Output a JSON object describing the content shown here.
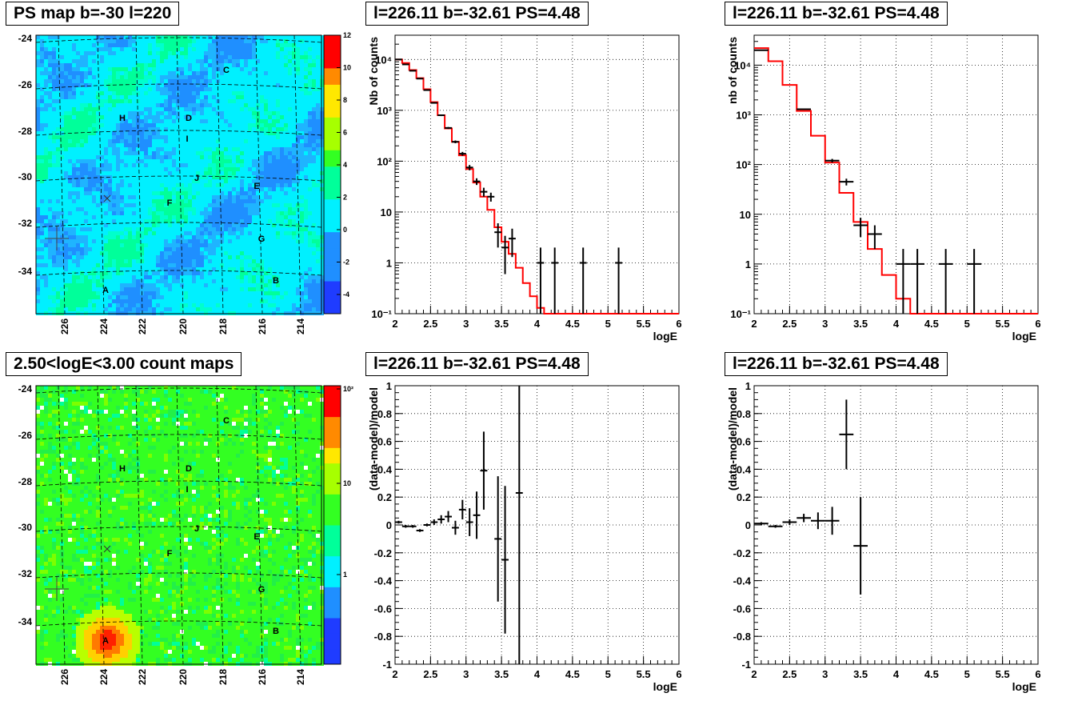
{
  "panels": {
    "ps_map": {
      "title": "PS map b=-30 l=220",
      "y_ticks": [
        "-24",
        "-26",
        "-28",
        "-30",
        "-32",
        "-34"
      ],
      "x_ticks": [
        "226",
        "224",
        "222",
        "220",
        "218",
        "216",
        "214"
      ],
      "colorbar_ticks": [
        "12",
        "10",
        "8",
        "6",
        "4",
        "2",
        "0",
        "-2",
        "-4"
      ],
      "labels": [
        "A",
        "B",
        "C",
        "D",
        "E",
        "F",
        "G",
        "H",
        "I",
        "J"
      ]
    },
    "count_map": {
      "title": "2.50<logE<3.00 count maps",
      "y_ticks": [
        "-24",
        "-26",
        "-28",
        "-30",
        "-32",
        "-34"
      ],
      "x_ticks": [
        "226",
        "224",
        "222",
        "220",
        "218",
        "216",
        "214"
      ],
      "colorbar_ticks": [
        "10²",
        "10",
        "1"
      ],
      "labels": [
        "A",
        "B",
        "C",
        "D",
        "E",
        "F",
        "G",
        "H",
        "I",
        "J"
      ]
    },
    "spectrum_left": {
      "title": "l=226.11 b=-32.61 PS=4.48"
    },
    "spectrum_right": {
      "title": "l=226.11 b=-32.61 PS=4.48"
    },
    "residual_left": {
      "title": "l=226.11 b=-32.61 PS=4.48"
    },
    "residual_right": {
      "title": "l=226.11 b=-32.61 PS=4.48"
    }
  },
  "chart_data": [
    {
      "id": "spectrum_left",
      "type": "line",
      "title": "l=226.11 b=-32.61 PS=4.48",
      "xlabel": "logE",
      "ylabel": "Nb of counts",
      "xlim": [
        2,
        6
      ],
      "ylim": [
        0.1,
        30000
      ],
      "log_y": true,
      "grid": true,
      "x_ticks": [
        "2",
        "2.5",
        "3",
        "3.5",
        "4",
        "4.5",
        "5",
        "5.5",
        "6"
      ],
      "y_ticks": [
        "10⁻¹",
        "1",
        "10",
        "10²",
        "10³",
        "10⁴"
      ],
      "data": [
        {
          "x": 2.05,
          "y": 10000,
          "lo": 9900,
          "hi": 10100
        },
        {
          "x": 2.15,
          "y": 8000,
          "lo": 7900,
          "hi": 8100
        },
        {
          "x": 2.25,
          "y": 6000,
          "lo": 5900,
          "hi": 6100
        },
        {
          "x": 2.35,
          "y": 4200,
          "lo": 4100,
          "hi": 4300
        },
        {
          "x": 2.45,
          "y": 2500,
          "lo": 2450,
          "hi": 2550
        },
        {
          "x": 2.55,
          "y": 1400,
          "lo": 1360,
          "hi": 1440
        },
        {
          "x": 2.65,
          "y": 800,
          "lo": 770,
          "hi": 830
        },
        {
          "x": 2.75,
          "y": 450,
          "lo": 430,
          "hi": 470
        },
        {
          "x": 2.85,
          "y": 240,
          "lo": 225,
          "hi": 255
        },
        {
          "x": 2.95,
          "y": 140,
          "lo": 128,
          "hi": 152
        },
        {
          "x": 3.05,
          "y": 75,
          "lo": 66,
          "hi": 84
        },
        {
          "x": 3.15,
          "y": 40,
          "lo": 34,
          "hi": 46
        },
        {
          "x": 3.25,
          "y": 25,
          "lo": 20,
          "hi": 30
        },
        {
          "x": 3.35,
          "y": 20,
          "lo": 16,
          "hi": 24
        },
        {
          "x": 3.45,
          "y": 4,
          "lo": 2,
          "hi": 6
        },
        {
          "x": 3.55,
          "y": 2,
          "lo": 0.6,
          "hi": 3.4
        },
        {
          "x": 3.65,
          "y": 3,
          "lo": 1.3,
          "hi": 4.7
        },
        {
          "x": 4.05,
          "y": 1,
          "lo": 0.1,
          "hi": 2
        },
        {
          "x": 4.25,
          "y": 1,
          "lo": 0.1,
          "hi": 2
        },
        {
          "x": 4.65,
          "y": 1,
          "lo": 0.1,
          "hi": 2
        },
        {
          "x": 5.15,
          "y": 1,
          "lo": 0.1,
          "hi": 2
        }
      ],
      "model": [
        {
          "x0": 2.0,
          "x1": 2.1,
          "y": 10000
        },
        {
          "x0": 2.1,
          "x1": 2.2,
          "y": 8500
        },
        {
          "x0": 2.2,
          "x1": 2.3,
          "y": 6200
        },
        {
          "x0": 2.3,
          "x1": 2.4,
          "y": 4300
        },
        {
          "x0": 2.4,
          "x1": 2.5,
          "y": 2600
        },
        {
          "x0": 2.5,
          "x1": 2.6,
          "y": 1450
        },
        {
          "x0": 2.6,
          "x1": 2.7,
          "y": 800
        },
        {
          "x0": 2.7,
          "x1": 2.8,
          "y": 440
        },
        {
          "x0": 2.8,
          "x1": 2.9,
          "y": 240
        },
        {
          "x0": 2.9,
          "x1": 3.0,
          "y": 130
        },
        {
          "x0": 3.0,
          "x1": 3.1,
          "y": 70
        },
        {
          "x0": 3.1,
          "x1": 3.2,
          "y": 38
        },
        {
          "x0": 3.2,
          "x1": 3.3,
          "y": 20
        },
        {
          "x0": 3.3,
          "x1": 3.4,
          "y": 11
        },
        {
          "x0": 3.4,
          "x1": 3.5,
          "y": 5
        },
        {
          "x0": 3.5,
          "x1": 3.6,
          "y": 2.6
        },
        {
          "x0": 3.6,
          "x1": 3.7,
          "y": 1.5
        },
        {
          "x0": 3.7,
          "x1": 3.8,
          "y": 0.8
        },
        {
          "x0": 3.8,
          "x1": 3.9,
          "y": 0.4
        },
        {
          "x0": 3.9,
          "x1": 4.0,
          "y": 0.22
        },
        {
          "x0": 4.0,
          "x1": 4.1,
          "y": 0.13
        },
        {
          "x0": 4.1,
          "x1": 6.0,
          "y": 0.1
        }
      ]
    },
    {
      "id": "spectrum_right",
      "type": "line",
      "title": "l=226.11 b=-32.61 PS=4.48",
      "xlabel": "logE",
      "ylabel": "nb of counts",
      "xlim": [
        2,
        6
      ],
      "ylim": [
        0.1,
        40000
      ],
      "log_y": true,
      "grid": true,
      "x_ticks": [
        "2",
        "2.5",
        "3",
        "3.5",
        "4",
        "4.5",
        "5",
        "5.5",
        "6"
      ],
      "y_ticks": [
        "10⁻¹",
        "1",
        "10",
        "10²",
        "10³",
        "10⁴"
      ],
      "data": [
        {
          "x": 2.1,
          "y": 20000,
          "lo": 19800,
          "hi": 20200
        },
        {
          "x": 2.7,
          "y": 1300,
          "lo": 1260,
          "hi": 1340
        },
        {
          "x": 3.1,
          "y": 120,
          "lo": 110,
          "hi": 130
        },
        {
          "x": 3.3,
          "y": 45,
          "lo": 38,
          "hi": 52
        },
        {
          "x": 3.5,
          "y": 6,
          "lo": 3.5,
          "hi": 8.5
        },
        {
          "x": 3.7,
          "y": 4,
          "lo": 2,
          "hi": 6
        },
        {
          "x": 4.1,
          "y": 1,
          "lo": 0.1,
          "hi": 2
        },
        {
          "x": 4.3,
          "y": 1,
          "lo": 0.1,
          "hi": 2
        },
        {
          "x": 4.7,
          "y": 1,
          "lo": 0.1,
          "hi": 2
        },
        {
          "x": 5.1,
          "y": 1,
          "lo": 0.1,
          "hi": 2
        }
      ],
      "model": [
        {
          "x0": 2.0,
          "x1": 2.2,
          "y": 22000
        },
        {
          "x0": 2.2,
          "x1": 2.4,
          "y": 12000
        },
        {
          "x0": 2.4,
          "x1": 2.6,
          "y": 4000
        },
        {
          "x0": 2.6,
          "x1": 2.8,
          "y": 1200
        },
        {
          "x0": 2.8,
          "x1": 3.0,
          "y": 380
        },
        {
          "x0": 3.0,
          "x1": 3.2,
          "y": 110
        },
        {
          "x0": 3.2,
          "x1": 3.4,
          "y": 27
        },
        {
          "x0": 3.4,
          "x1": 3.6,
          "y": 7
        },
        {
          "x0": 3.6,
          "x1": 3.8,
          "y": 2
        },
        {
          "x0": 3.8,
          "x1": 4.0,
          "y": 0.6
        },
        {
          "x0": 4.0,
          "x1": 4.2,
          "y": 0.2
        },
        {
          "x0": 4.2,
          "x1": 6.0,
          "y": 0.1
        }
      ]
    },
    {
      "id": "residual_left",
      "type": "scatter",
      "title": "l=226.11 b=-32.61 PS=4.48",
      "xlabel": "logE",
      "ylabel": "(data-model)/model",
      "xlim": [
        2,
        6
      ],
      "ylim": [
        -1,
        1
      ],
      "grid": true,
      "x_ticks": [
        "2",
        "2.5",
        "3",
        "3.5",
        "4",
        "4.5",
        "5",
        "5.5",
        "6"
      ],
      "y_ticks": [
        "-1",
        "-0.8",
        "-0.6",
        "-0.4",
        "-0.2",
        "0",
        "0.2",
        "0.4",
        "0.6",
        "0.8",
        "1"
      ],
      "data": [
        {
          "x": 2.05,
          "y": 0.02,
          "lo": 0.01,
          "hi": 0.03
        },
        {
          "x": 2.15,
          "y": -0.01,
          "lo": -0.02,
          "hi": 0.0
        },
        {
          "x": 2.25,
          "y": -0.01,
          "lo": -0.02,
          "hi": 0.0
        },
        {
          "x": 2.35,
          "y": -0.04,
          "lo": -0.05,
          "hi": -0.03
        },
        {
          "x": 2.45,
          "y": 0.0,
          "lo": -0.01,
          "hi": 0.01
        },
        {
          "x": 2.55,
          "y": 0.02,
          "lo": 0.0,
          "hi": 0.04
        },
        {
          "x": 2.65,
          "y": 0.04,
          "lo": 0.01,
          "hi": 0.07
        },
        {
          "x": 2.75,
          "y": 0.06,
          "lo": 0.02,
          "hi": 0.1
        },
        {
          "x": 2.85,
          "y": -0.02,
          "lo": -0.07,
          "hi": 0.03
        },
        {
          "x": 2.95,
          "y": 0.11,
          "lo": 0.04,
          "hi": 0.18
        },
        {
          "x": 3.05,
          "y": 0.02,
          "lo": -0.08,
          "hi": 0.12
        },
        {
          "x": 3.15,
          "y": 0.07,
          "lo": -0.1,
          "hi": 0.24
        },
        {
          "x": 3.25,
          "y": 0.39,
          "lo": 0.11,
          "hi": 0.67
        },
        {
          "x": 3.45,
          "y": -0.1,
          "lo": -0.55,
          "hi": 0.35
        },
        {
          "x": 3.55,
          "y": -0.25,
          "lo": -0.78,
          "hi": 0.28
        },
        {
          "x": 3.75,
          "y": 0.23,
          "lo": -1.0,
          "hi": 1.0
        }
      ]
    },
    {
      "id": "residual_right",
      "type": "scatter",
      "title": "l=226.11 b=-32.61 PS=4.48",
      "xlabel": "logE",
      "ylabel": "(data-model)/model",
      "xlim": [
        2,
        6
      ],
      "ylim": [
        -1,
        1
      ],
      "grid": true,
      "x_ticks": [
        "2",
        "2.5",
        "3",
        "3.5",
        "4",
        "4.5",
        "5",
        "5.5",
        "6"
      ],
      "y_ticks": [
        "-1",
        "-0.8",
        "-0.6",
        "-0.4",
        "-0.2",
        "0",
        "0.2",
        "0.4",
        "0.6",
        "0.8",
        "1"
      ],
      "data": [
        {
          "x": 2.1,
          "y": 0.01,
          "lo": 0.0,
          "hi": 0.02
        },
        {
          "x": 2.3,
          "y": -0.01,
          "lo": -0.02,
          "hi": 0.0
        },
        {
          "x": 2.5,
          "y": 0.02,
          "lo": 0.0,
          "hi": 0.04
        },
        {
          "x": 2.7,
          "y": 0.05,
          "lo": 0.02,
          "hi": 0.08
        },
        {
          "x": 2.9,
          "y": 0.03,
          "lo": -0.03,
          "hi": 0.09
        },
        {
          "x": 3.1,
          "y": 0.03,
          "lo": -0.07,
          "hi": 0.13
        },
        {
          "x": 3.3,
          "y": 0.65,
          "lo": 0.4,
          "hi": 0.9
        },
        {
          "x": 3.5,
          "y": -0.15,
          "lo": -0.5,
          "hi": 0.2
        }
      ]
    }
  ]
}
